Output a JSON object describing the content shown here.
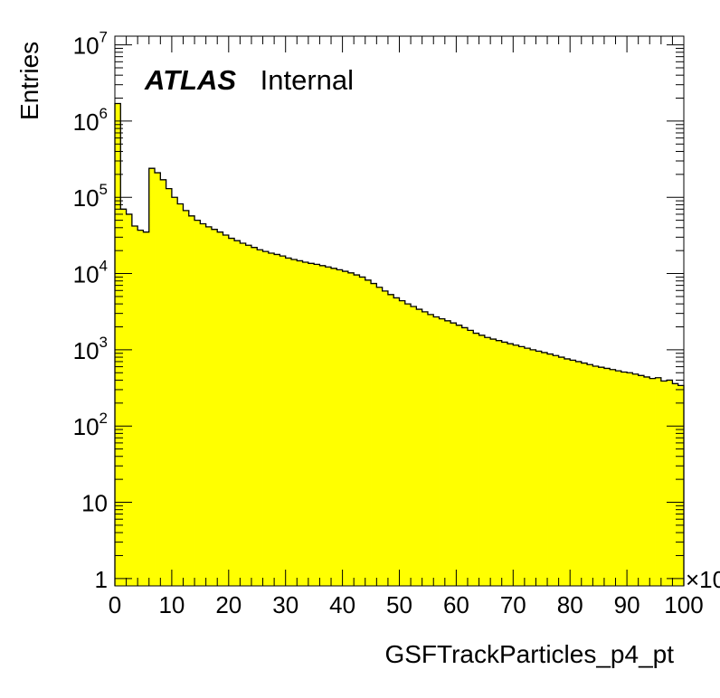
{
  "chart_data": {
    "type": "histogram",
    "title": "",
    "xlabel": "GSFTrackParticles_p4_pt",
    "ylabel": "Entries",
    "x_multiplier_label": "×10",
    "xlim": [
      0,
      100
    ],
    "ylim": [
      0.8,
      13000000
    ],
    "y_scale": "log",
    "bin_width": 1,
    "x_ticks": [
      "0",
      "10",
      "20",
      "30",
      "40",
      "50",
      "60",
      "70",
      "80",
      "90",
      "100"
    ],
    "y_ticks": [
      {
        "value": 1,
        "base": "1",
        "exp": ""
      },
      {
        "value": 10,
        "base": "10",
        "exp": ""
      },
      {
        "value": 100,
        "base": "10",
        "exp": "2"
      },
      {
        "value": 1000,
        "base": "10",
        "exp": "3"
      },
      {
        "value": 10000,
        "base": "10",
        "exp": "4"
      },
      {
        "value": 100000,
        "base": "10",
        "exp": "5"
      },
      {
        "value": 1000000,
        "base": "10",
        "exp": "6"
      },
      {
        "value": 10000000,
        "base": "10",
        "exp": "7"
      }
    ],
    "fill_color": "#ffff00",
    "line_color": "#000000",
    "annotation": {
      "bold": "ATLAS",
      "normal": "Internal"
    },
    "values": [
      1700000,
      70000,
      60000,
      42000,
      37000,
      35000,
      240000,
      210000,
      170000,
      130000,
      100000,
      82000,
      67000,
      57000,
      50000,
      45000,
      41000,
      38000,
      35000,
      32000,
      29000,
      27000,
      25000,
      23500,
      22000,
      20500,
      19500,
      18500,
      17800,
      17000,
      16000,
      15300,
      14700,
      14100,
      13600,
      13200,
      12700,
      12200,
      11700,
      11200,
      10700,
      10200,
      9600,
      9000,
      8200,
      7400,
      6600,
      5900,
      5300,
      4800,
      4400,
      4000,
      3700,
      3400,
      3150,
      2900,
      2700,
      2550,
      2400,
      2250,
      2100,
      1950,
      1800,
      1650,
      1550,
      1450,
      1380,
      1320,
      1260,
      1200,
      1150,
      1100,
      1050,
      1000,
      960,
      920,
      880,
      840,
      800,
      760,
      730,
      700,
      670,
      640,
      610,
      590,
      570,
      550,
      530,
      510,
      500,
      480,
      460,
      440,
      420,
      430,
      390,
      400,
      360,
      340
    ]
  }
}
